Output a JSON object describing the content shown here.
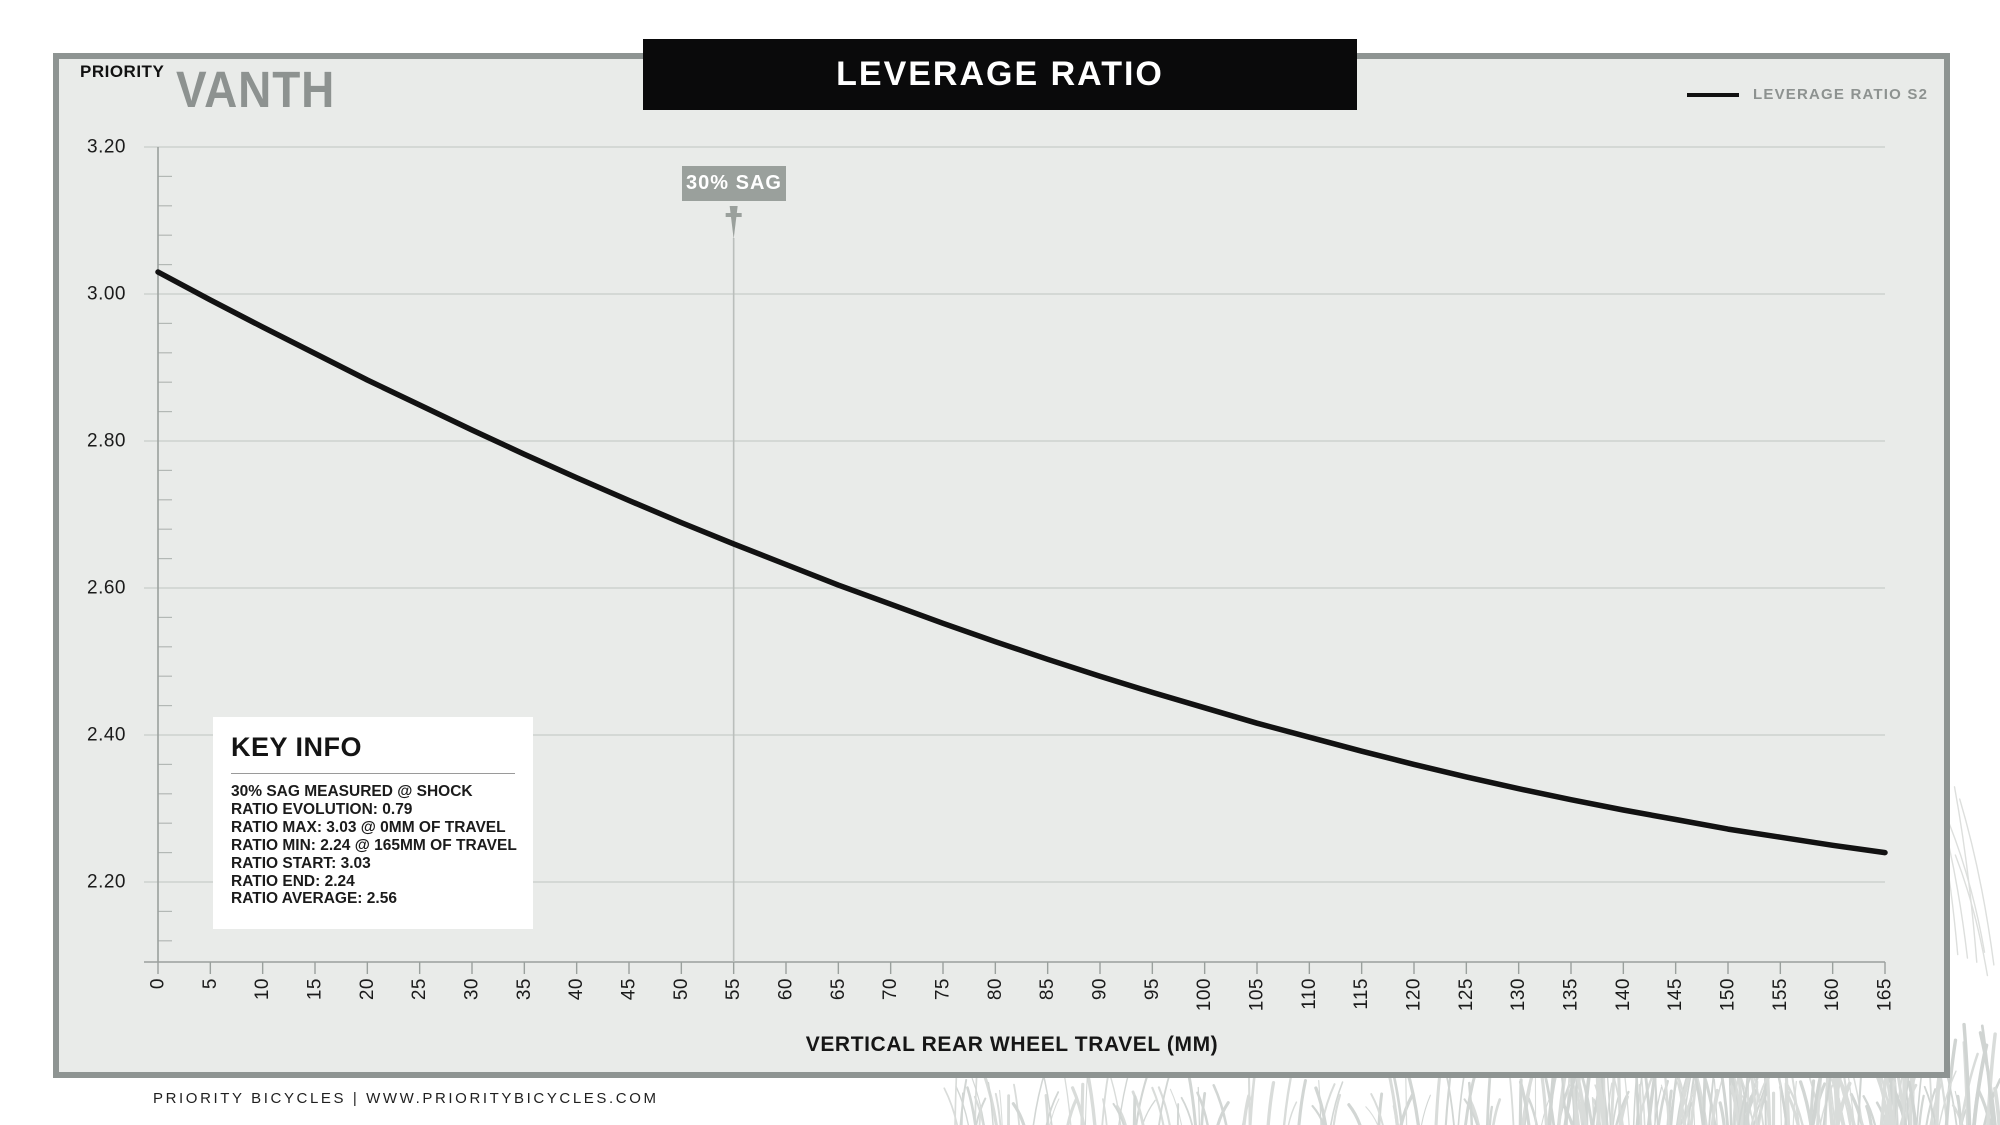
{
  "brand": {
    "priority_logo": "PRIORITY",
    "model_logo": "VANTH"
  },
  "header": {
    "title": "LEVERAGE RATIO"
  },
  "legend": {
    "series_label": "LEVERAGE RATIO S2"
  },
  "sag": {
    "label": "30% SAG",
    "x_mm": 55
  },
  "key_info": {
    "title": "KEY INFO",
    "lines": [
      "30% SAG MEASURED @ SHOCK",
      "RATIO EVOLUTION: 0.79",
      "RATIO MAX: 3.03 @ 0MM OF TRAVEL",
      "RATIO MIN: 2.24 @ 165MM OF TRAVEL",
      "RATIO START: 3.03",
      "RATIO END: 2.24",
      "RATIO AVERAGE: 2.56"
    ]
  },
  "axes": {
    "x_title": "VERTICAL REAR WHEEL TRAVEL (MM)"
  },
  "footer": {
    "text": "PRIORITY BICYCLES | WWW.PRIORITYBICYCLES.COM"
  },
  "chart_data": {
    "type": "line",
    "title": "LEVERAGE RATIO",
    "xlabel": "VERTICAL REAR WHEEL TRAVEL (MM)",
    "ylabel": "",
    "x": [
      0,
      5,
      10,
      15,
      20,
      25,
      30,
      35,
      40,
      45,
      50,
      55,
      60,
      65,
      70,
      75,
      80,
      85,
      90,
      95,
      100,
      105,
      110,
      115,
      120,
      125,
      130,
      135,
      140,
      145,
      150,
      155,
      160,
      165
    ],
    "series": [
      {
        "name": "LEVERAGE RATIO S2",
        "values": [
          3.03,
          2.992,
          2.955,
          2.919,
          2.883,
          2.849,
          2.815,
          2.782,
          2.75,
          2.719,
          2.689,
          2.66,
          2.632,
          2.604,
          2.578,
          2.552,
          2.527,
          2.503,
          2.48,
          2.458,
          2.437,
          2.416,
          2.397,
          2.378,
          2.36,
          2.343,
          2.327,
          2.312,
          2.298,
          2.285,
          2.272,
          2.261,
          2.25,
          2.24
        ]
      }
    ],
    "xlim": [
      0,
      165
    ],
    "ylim": [
      2.09,
      3.2
    ],
    "y_ticks": [
      "3.20",
      "3.00",
      "2.80",
      "2.60",
      "2.40",
      "2.20"
    ],
    "y_minor_step": 0.04,
    "x_tick_step": 5,
    "grid": "horizontal-major",
    "legend_position": "top-right",
    "annotations": {
      "sag_line_x_mm": 55,
      "sag_label": "30% SAG"
    },
    "colors": {
      "curve": "#121212",
      "grid": "#c8ccc9",
      "axis": "#9aa09d",
      "minor_tick": "#b3b8b5",
      "sag": "#9aa09c",
      "sag_line": "#babebb",
      "panel_bg": "#e9ebe9",
      "panel_border": "#8e9492",
      "title_bar_bg": "#0a0a0b",
      "brand_gray": "#8d9290",
      "texture": "#d9dcda"
    }
  }
}
